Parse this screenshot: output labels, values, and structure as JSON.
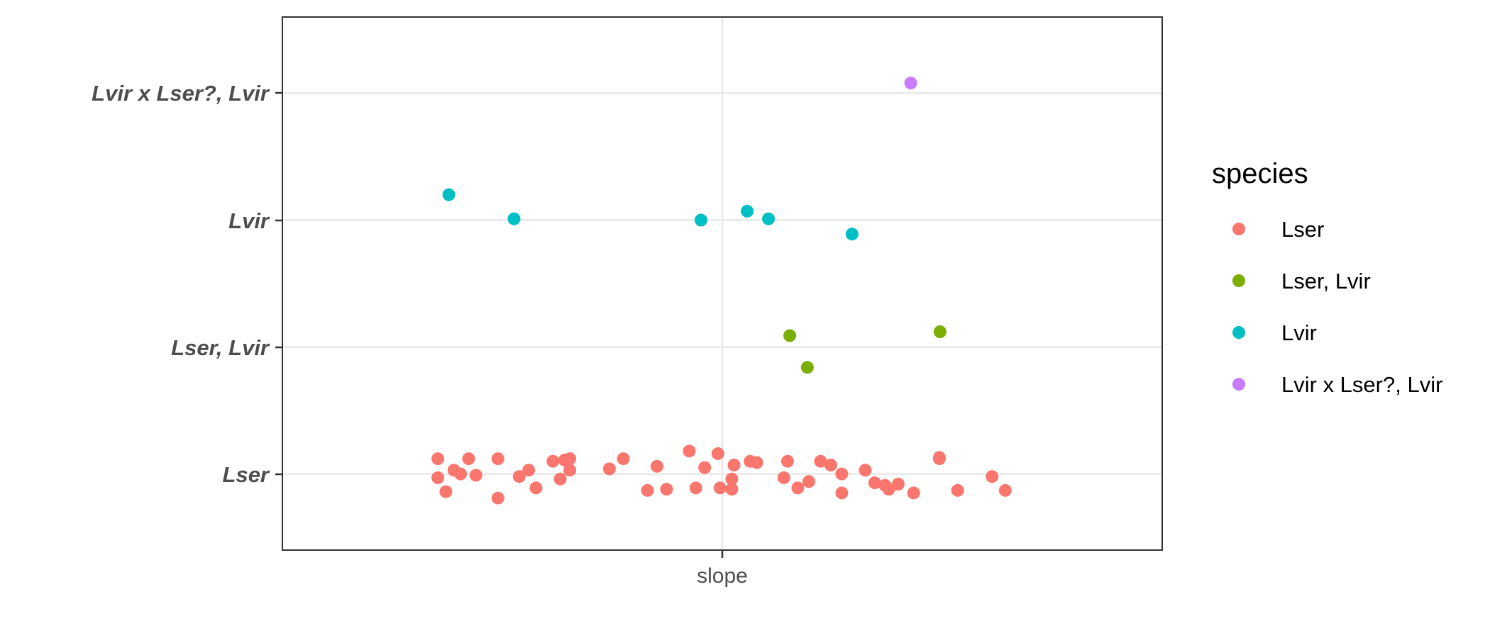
{
  "chart_data": {
    "type": "scatter",
    "x_categories": [
      "slope"
    ],
    "y_categories": [
      "Lser",
      "Lser, Lvir",
      "Lvir",
      "Lvir x Lser?, Lvir"
    ],
    "xlim": [
      0.4,
      1.6
    ],
    "ylim": [
      0.4,
      4.6
    ],
    "grid": true,
    "legend": {
      "title": "species",
      "placement": "right",
      "entries": [
        {
          "label": "Lser",
          "color": "#F8766D"
        },
        {
          "label": "Lser, Lvir",
          "color": "#7CAE00"
        },
        {
          "label": "Lvir",
          "color": "#00BFC4"
        },
        {
          "label": "Lvir x Lser?, Lvir",
          "color": "#C77CFF"
        }
      ]
    },
    "series": [
      {
        "name": "Lser",
        "color": "#F8766D",
        "points": [
          {
            "x": 0.612,
            "y": 1.12
          },
          {
            "x": 0.612,
            "y": 0.97
          },
          {
            "x": 0.623,
            "y": 0.86
          },
          {
            "x": 0.634,
            "y": 1.03
          },
          {
            "x": 0.643,
            "y": 1.0
          },
          {
            "x": 0.654,
            "y": 1.12
          },
          {
            "x": 0.664,
            "y": 0.99
          },
          {
            "x": 0.694,
            "y": 1.12
          },
          {
            "x": 0.694,
            "y": 0.81
          },
          {
            "x": 0.723,
            "y": 0.98
          },
          {
            "x": 0.736,
            "y": 1.03
          },
          {
            "x": 0.746,
            "y": 0.89
          },
          {
            "x": 0.769,
            "y": 1.1
          },
          {
            "x": 0.779,
            "y": 0.96
          },
          {
            "x": 0.785,
            "y": 1.11
          },
          {
            "x": 0.792,
            "y": 1.12
          },
          {
            "x": 0.792,
            "y": 1.03
          },
          {
            "x": 0.846,
            "y": 1.04
          },
          {
            "x": 0.865,
            "y": 1.12
          },
          {
            "x": 0.898,
            "y": 0.87
          },
          {
            "x": 0.911,
            "y": 1.06
          },
          {
            "x": 0.924,
            "y": 0.88
          },
          {
            "x": 0.955,
            "y": 1.18
          },
          {
            "x": 0.964,
            "y": 0.89
          },
          {
            "x": 0.976,
            "y": 1.05
          },
          {
            "x": 0.994,
            "y": 1.16
          },
          {
            "x": 0.997,
            "y": 0.89
          },
          {
            "x": 1.013,
            "y": 0.88
          },
          {
            "x": 1.013,
            "y": 0.96
          },
          {
            "x": 1.016,
            "y": 1.07
          },
          {
            "x": 1.038,
            "y": 1.1
          },
          {
            "x": 1.047,
            "y": 1.09
          },
          {
            "x": 1.084,
            "y": 0.97
          },
          {
            "x": 1.089,
            "y": 1.1
          },
          {
            "x": 1.103,
            "y": 0.89
          },
          {
            "x": 1.118,
            "y": 0.94
          },
          {
            "x": 1.134,
            "y": 1.1
          },
          {
            "x": 1.148,
            "y": 1.07
          },
          {
            "x": 1.163,
            "y": 0.85
          },
          {
            "x": 1.163,
            "y": 1.0
          },
          {
            "x": 1.195,
            "y": 1.03
          },
          {
            "x": 1.208,
            "y": 0.93
          },
          {
            "x": 1.222,
            "y": 0.91
          },
          {
            "x": 1.227,
            "y": 0.88
          },
          {
            "x": 1.24,
            "y": 0.92
          },
          {
            "x": 1.261,
            "y": 0.85
          },
          {
            "x": 1.296,
            "y": 1.12
          },
          {
            "x": 1.296,
            "y": 1.13
          },
          {
            "x": 1.321,
            "y": 0.87
          },
          {
            "x": 1.368,
            "y": 0.98
          },
          {
            "x": 1.386,
            "y": 0.87
          }
        ]
      },
      {
        "name": "Lser, Lvir",
        "color": "#7CAE00",
        "points": [
          {
            "x": 1.092,
            "y": 2.09
          },
          {
            "x": 1.116,
            "y": 1.84
          },
          {
            "x": 1.297,
            "y": 2.12
          }
        ]
      },
      {
        "name": "Lvir",
        "color": "#00BFC4",
        "points": [
          {
            "x": 0.627,
            "y": 3.2
          },
          {
            "x": 0.716,
            "y": 3.01
          },
          {
            "x": 0.971,
            "y": 3.0
          },
          {
            "x": 1.034,
            "y": 3.07
          },
          {
            "x": 1.063,
            "y": 3.01
          },
          {
            "x": 1.177,
            "y": 2.89
          }
        ]
      },
      {
        "name": "Lvir x Lser?, Lvir",
        "color": "#C77CFF",
        "points": [
          {
            "x": 1.257,
            "y": 4.08
          }
        ]
      }
    ]
  }
}
